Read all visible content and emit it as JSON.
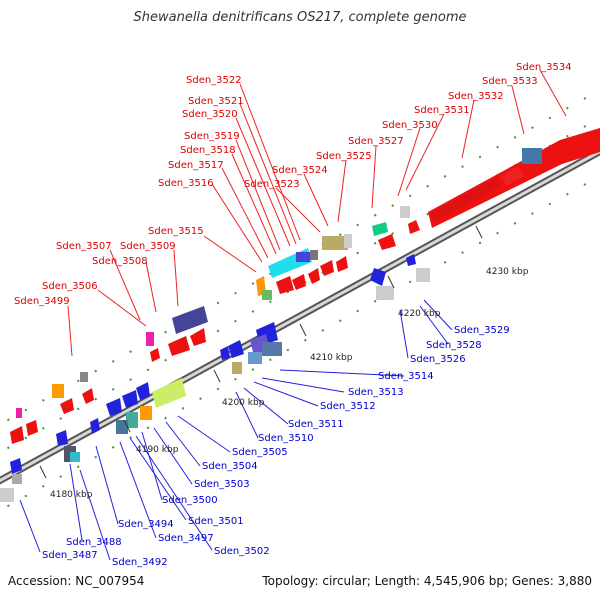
{
  "title": "Shewanella denitrificans OS217, complete genome",
  "footer": {
    "accession": "Accession: NC_007954",
    "summary": "Topology: circular; Length: 4,545,906 bp; Genes: 3,880"
  },
  "colors": {
    "forward_label": "#dd0000",
    "reverse_label": "#0000cc",
    "axis": "#555555",
    "axis_dot": "#339933"
  },
  "ticks": [
    "4180 kbp",
    "4190 kbp",
    "4200 kbp",
    "4210 kbp",
    "4220 kbp",
    "4230 kbp"
  ],
  "forward_labels": [
    "Sden_3534",
    "Sden_3533",
    "Sden_3532",
    "Sden_3531",
    "Sden_3530",
    "Sden_3527",
    "Sden_3525",
    "Sden_3524",
    "Sden_3523",
    "Sden_3522",
    "Sden_3521",
    "Sden_3520",
    "Sden_3519",
    "Sden_3518",
    "Sden_3517",
    "Sden_3516",
    "Sden_3515",
    "Sden_3509",
    "Sden_3508",
    "Sden_3507",
    "Sden_3506",
    "Sden_3499"
  ],
  "reverse_labels": [
    "Sden_3529",
    "Sden_3528",
    "Sden_3526",
    "Sden_3514",
    "Sden_3513",
    "Sden_3512",
    "Sden_3511",
    "Sden_3510",
    "Sden_3505",
    "Sden_3504",
    "Sden_3503",
    "Sden_3500",
    "Sden_3501",
    "Sden_3494",
    "Sden_3497",
    "Sden_3502",
    "Sden_3488",
    "Sden_3487",
    "Sden_3492"
  ]
}
